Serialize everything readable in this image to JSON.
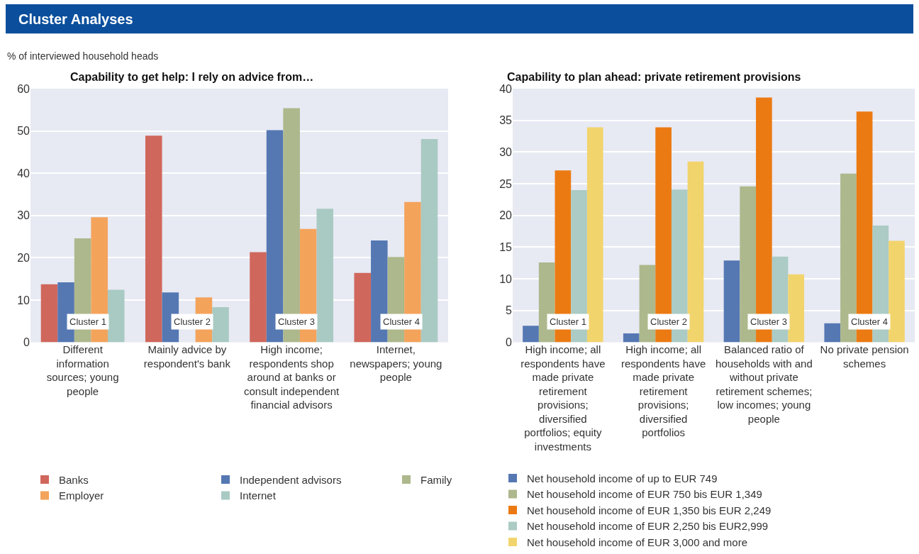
{
  "chart_data": [
    {
      "type": "bar",
      "title": "Capability to get help: I rely on advice from…",
      "annotations": [
        "Cluster Analyses",
        "% of interviewed household heads",
        "Cluster 1",
        "Cluster 2",
        "Cluster 3",
        "Cluster 4"
      ],
      "categories": [
        "Different information sources; young people",
        "Mainly advice by respondent's bank",
        "High income; respondents shop around at banks or consult independent financial advisors",
        "Internet, newspapers; young people"
      ],
      "series": [
        {
          "name": "Banks",
          "color": "#d0675c",
          "values": [
            13.7,
            48.9,
            21.3,
            16.4
          ]
        },
        {
          "name": "Independent advisors",
          "color": "#5578b3",
          "values": [
            14.2,
            11.8,
            50.2,
            24.1
          ]
        },
        {
          "name": "Family",
          "color": "#adb88c",
          "values": [
            24.6,
            null,
            55.4,
            20.2
          ]
        },
        {
          "name": "Employer",
          "color": "#f4a35b",
          "values": [
            29.6,
            10.6,
            26.8,
            33.2
          ]
        },
        {
          "name": "Internet",
          "color": "#a9cac3",
          "values": [
            12.4,
            8.3,
            31.6,
            48.1
          ]
        }
      ],
      "ylim": [
        0,
        60
      ],
      "yticks": [
        0,
        10,
        20,
        30,
        40,
        50,
        60
      ],
      "grid": true,
      "legend": "bottom"
    },
    {
      "type": "bar",
      "title": "Capability to plan ahead: private retirement provisions",
      "annotations": [
        "Cluster 1",
        "Cluster 2",
        "Cluster 3",
        "Cluster 4"
      ],
      "categories": [
        "High income; all respondents have made private retirement provisions; diversified portfolios; equity investments",
        "High income; all respondents have made private retirement provisions; diversified portfolios",
        "Balanced ratio of households with and without private retirement schemes; low incomes; young people",
        "No private pension schemes"
      ],
      "series": [
        {
          "name": "Net household income of up to EUR 749",
          "color": "#5578b3",
          "values": [
            2.6,
            1.4,
            12.9,
            3.0
          ]
        },
        {
          "name": "Net household income of EUR 750 bis EUR 1,349",
          "color": "#adb88c",
          "values": [
            12.6,
            12.2,
            24.6,
            26.6
          ]
        },
        {
          "name": "Net household income of EUR 1,350 bis EUR 2,249",
          "color": "#ec7a12",
          "values": [
            27.1,
            33.9,
            38.6,
            36.4
          ]
        },
        {
          "name": "Net household income of EUR 2,250 bis EUR2,999",
          "color": "#abcbc4",
          "values": [
            24.0,
            24.1,
            13.5,
            18.4
          ]
        },
        {
          "name": "Net household income of EUR 3,000 and more",
          "color": "#f2d46d",
          "values": [
            33.9,
            28.5,
            10.7,
            16.0
          ]
        }
      ],
      "ylim": [
        0,
        40
      ],
      "yticks": [
        0,
        5,
        10,
        15,
        20,
        25,
        30,
        35,
        40
      ],
      "grid": true,
      "legend": "bottom"
    }
  ]
}
